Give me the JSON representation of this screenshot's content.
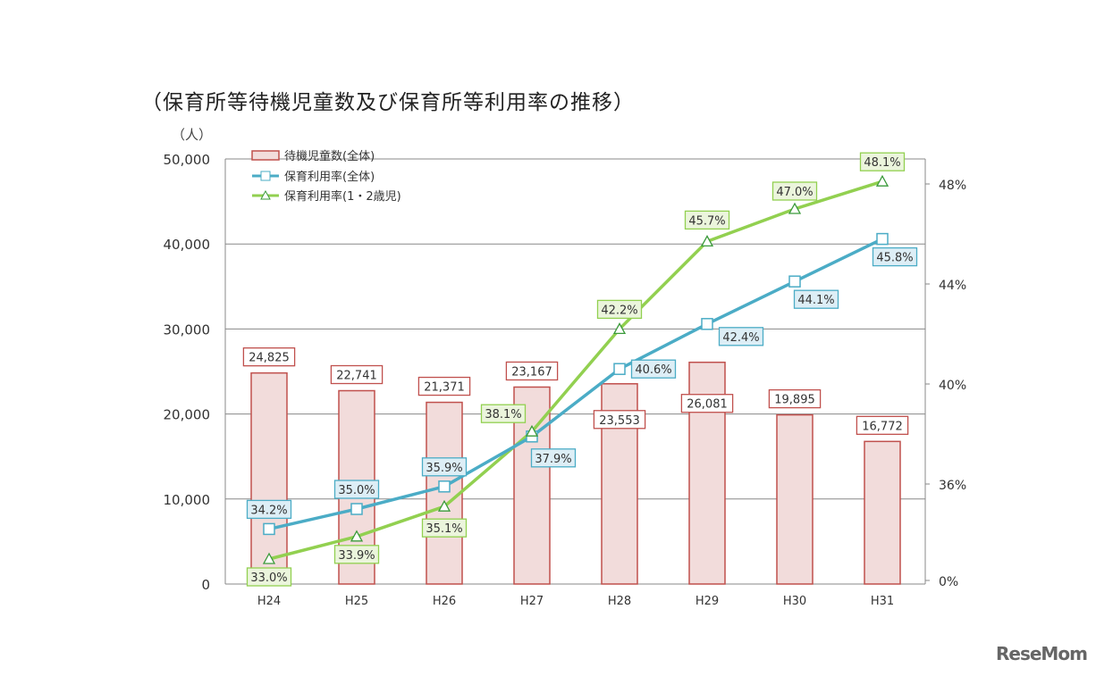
{
  "title": "（保育所等待機児童数及び保育所等利用率の推移）",
  "left_unit": "（人）",
  "logo": "ReseMom",
  "chart_data": {
    "type": "bar+line",
    "title": "（保育所等待機児童数及び保育所等利用率の推移）",
    "categories": [
      "H24",
      "H25",
      "H26",
      "H27",
      "H28",
      "H29",
      "H30",
      "H31"
    ],
    "left_axis": {
      "label": "（人）",
      "ylim": [
        0,
        50000
      ],
      "ticks": [
        "0",
        "10,000",
        "20,000",
        "30,000",
        "40,000",
        "50,000"
      ],
      "tick_values": [
        0,
        10000,
        20000,
        30000,
        40000,
        50000
      ]
    },
    "right_axis": {
      "ylim": [
        32,
        48.8
      ],
      "broken": true,
      "ticks": [
        "0%",
        "36%",
        "40%",
        "44%",
        "48%"
      ],
      "tick_values": [
        32,
        36,
        40,
        44,
        48
      ]
    },
    "grid": true,
    "legend_position": "top-left",
    "series": [
      {
        "name": "待機児童数(全体)",
        "type": "bar",
        "axis": "left",
        "color": "#c0504d",
        "fill": "#f2dcdb",
        "values": [
          24825,
          22741,
          21371,
          23167,
          23553,
          26081,
          19895,
          16772
        ],
        "labels": [
          "24,825",
          "22,741",
          "21,371",
          "23,167",
          "23,553",
          "26,081",
          "19,895",
          "16,772"
        ]
      },
      {
        "name": "保育利用率(全体)",
        "type": "line",
        "marker": "square",
        "axis": "right",
        "color": "#4bacc6",
        "values": [
          34.2,
          35.0,
          35.9,
          37.9,
          40.6,
          42.4,
          44.1,
          45.8
        ],
        "labels": [
          "34.2%",
          "35.0%",
          "35.9%",
          "37.9%",
          "40.6%",
          "42.4%",
          "44.1%",
          "45.8%"
        ]
      },
      {
        "name": "保育利用率(1・2歳児)",
        "type": "line",
        "marker": "triangle",
        "axis": "right",
        "color": "#92d050",
        "values": [
          33.0,
          33.9,
          35.1,
          38.1,
          42.2,
          45.7,
          47.0,
          48.1
        ],
        "labels": [
          "33.0%",
          "33.9%",
          "35.1%",
          "38.1%",
          "42.2%",
          "45.7%",
          "47.0%",
          "48.1%"
        ]
      }
    ]
  }
}
